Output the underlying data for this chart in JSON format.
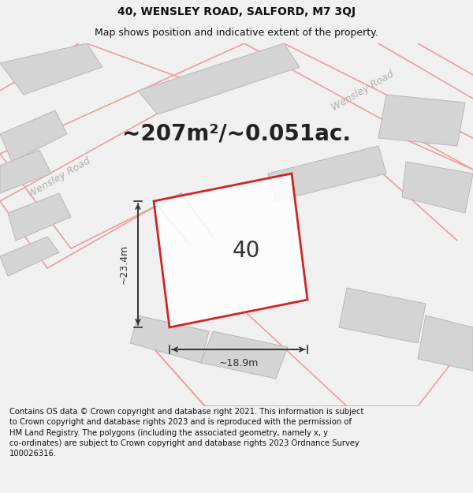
{
  "title_line1": "40, WENSLEY ROAD, SALFORD, M7 3QJ",
  "title_line2": "Map shows position and indicative extent of the property.",
  "area_text": "~207m²/~0.051ac.",
  "plot_number": "40",
  "dim_width": "~18.9m",
  "dim_height": "~23.4m",
  "footer_text": "Contains OS data © Crown copyright and database right 2021. This information is subject to Crown copyright and database rights 2023 and is reproduced with the permission of HM Land Registry. The polygons (including the associated geometry, namely x, y co-ordinates) are subject to Crown copyright and database rights 2023 Ordnance Survey 100026316.",
  "bg_color": "#f0f0f0",
  "map_bg": "#e8e8e8",
  "plot_color": "#cc0000",
  "road_color": "#e8a0a0",
  "building_color": "#d4d4d4",
  "building_edge": "#b8b8b8",
  "title_fontsize": 10,
  "subtitle_fontsize": 9,
  "area_fontsize": 20,
  "plot_num_fontsize": 20,
  "dim_fontsize": 9,
  "footer_fontsize": 7.2,
  "road_label_color": "#b0b0b0",
  "road_lw": 1.2
}
